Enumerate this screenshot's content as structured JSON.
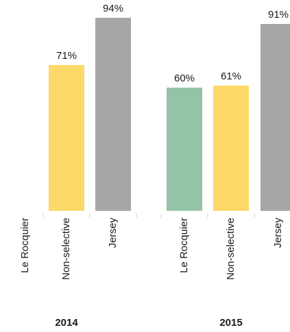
{
  "chart_data": {
    "type": "bar",
    "groups": [
      {
        "name": "2014",
        "bars": [
          {
            "category": "Le Rocquier",
            "value": null,
            "label": ""
          },
          {
            "category": "Non-selective",
            "value": 71,
            "label": "71%"
          },
          {
            "category": "Jersey",
            "value": 94,
            "label": "94%"
          }
        ]
      },
      {
        "name": "2015",
        "bars": [
          {
            "category": "Le Rocquier",
            "value": 60,
            "label": "60%"
          },
          {
            "category": "Non-selective",
            "value": 61,
            "label": "61%"
          },
          {
            "category": "Jersey",
            "value": 91,
            "label": "91%"
          }
        ]
      }
    ],
    "ylim": [
      0,
      100
    ],
    "grid": false,
    "legend": "none",
    "colors": {
      "Le Rocquier": "#93c4a7",
      "Non-selective": "#fdd96a",
      "Jersey": "#a6a6a6"
    },
    "tick_color": "#d0d0d0"
  }
}
